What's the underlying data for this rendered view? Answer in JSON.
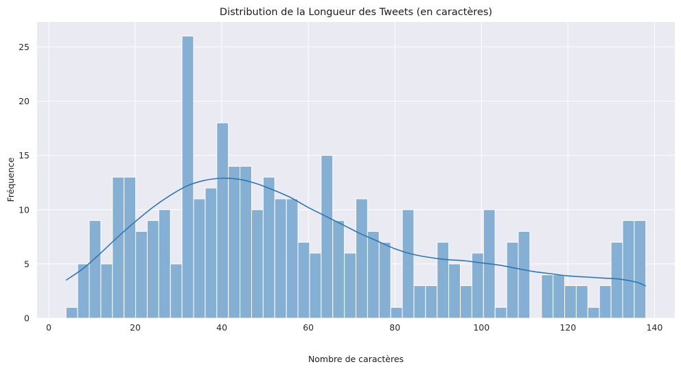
{
  "chart_data": {
    "type": "bar",
    "title": "Distribution de la Longueur des Tweets (en caractères)",
    "xlabel": "Nombre de caractères",
    "ylabel": "Fréquence",
    "xlim": [
      -2.7,
      144.7
    ],
    "ylim": [
      0,
      27.3
    ],
    "xticks": [
      0,
      20,
      40,
      60,
      80,
      100,
      120,
      140
    ],
    "yticks": [
      0,
      5,
      10,
      15,
      20,
      25
    ],
    "grid": true,
    "bin_edges": [
      4,
      6.68,
      9.36,
      12.04,
      14.72,
      17.4,
      20.08,
      22.76,
      25.44,
      28.12,
      30.8,
      33.48,
      36.16,
      38.84,
      41.52,
      44.2,
      46.88,
      49.56,
      52.24,
      54.92,
      57.6,
      60.28,
      62.96,
      65.64,
      68.32,
      71,
      73.68,
      76.36,
      79.04,
      81.72,
      84.4,
      87.08,
      89.76,
      92.44,
      95.12,
      97.8,
      100.48,
      103.16,
      105.84,
      108.52,
      111.2,
      113.88,
      116.56,
      119.24,
      121.92,
      124.6,
      127.28,
      129.96,
      132.64,
      135.32,
      138
    ],
    "values": [
      1,
      5,
      9,
      5,
      13,
      13,
      8,
      9,
      10,
      5,
      26,
      11,
      12,
      18,
      14,
      14,
      10,
      13,
      11,
      11,
      7,
      6,
      15,
      9,
      6,
      11,
      8,
      7,
      1,
      10,
      3,
      3,
      7,
      5,
      3,
      6,
      10,
      1,
      7,
      8,
      0,
      4,
      4,
      3,
      3,
      1,
      3,
      7,
      9,
      9
    ],
    "kde": {
      "x": [
        4,
        8,
        12,
        16,
        20,
        24,
        28,
        32,
        36,
        40,
        44,
        48,
        52,
        56,
        60,
        64,
        68,
        72,
        76,
        80,
        84,
        88,
        92,
        96,
        100,
        104,
        108,
        112,
        116,
        120,
        124,
        128,
        132,
        136,
        138
      ],
      "y": [
        3.5,
        4.6,
        6.0,
        7.5,
        8.9,
        10.2,
        11.3,
        12.2,
        12.7,
        12.9,
        12.8,
        12.4,
        11.8,
        11.1,
        10.2,
        9.4,
        8.6,
        7.8,
        7.1,
        6.4,
        5.9,
        5.6,
        5.4,
        5.3,
        5.1,
        4.9,
        4.6,
        4.3,
        4.1,
        3.9,
        3.8,
        3.7,
        3.6,
        3.3,
        2.95
      ]
    },
    "colors": {
      "bar_fill": "#86b0d3",
      "bar_edge": "#ffffff",
      "kde_line": "#2a76b4",
      "plot_background": "#eaeaf2",
      "grid": "#ffffff"
    }
  }
}
